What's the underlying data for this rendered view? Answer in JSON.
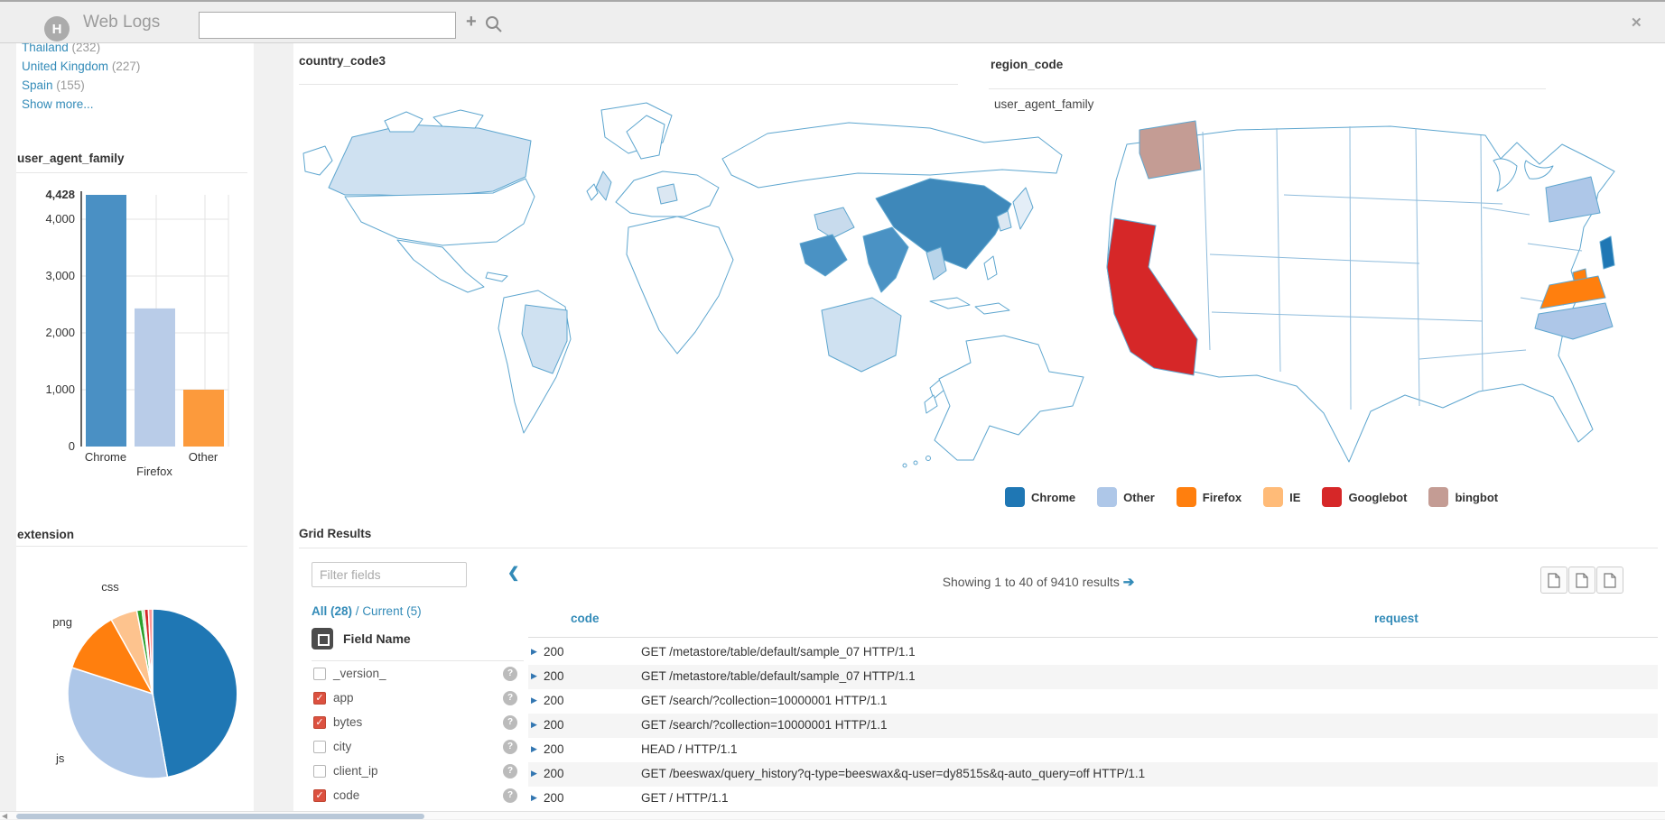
{
  "topbar": {
    "title": "Web Logs",
    "search_value": "",
    "logo_letter": "H"
  },
  "icons": {
    "add": "+",
    "close": "✕",
    "collapse": "❮",
    "next": "➔",
    "row_expand": "▶",
    "help": "?",
    "check": "✓",
    "scroll_left": "◀"
  },
  "sidebar": {
    "country_facet": {
      "items": [
        {
          "label": "Thailand",
          "count": "(232)"
        },
        {
          "label": "United Kingdom",
          "count": "(227)"
        },
        {
          "label": "Spain",
          "count": "(155)"
        }
      ],
      "show_more": "Show more..."
    }
  },
  "grid": {
    "title": "Grid Results",
    "filter_placeholder": "Filter fields",
    "links": {
      "all": "All (28)",
      "separator": "/",
      "current": "Current (5)"
    },
    "field_header": "Field Name",
    "fields": [
      {
        "name": "_version_",
        "checked": false
      },
      {
        "name": "app",
        "checked": true
      },
      {
        "name": "bytes",
        "checked": true
      },
      {
        "name": "city",
        "checked": false
      },
      {
        "name": "client_ip",
        "checked": false
      },
      {
        "name": "code",
        "checked": true
      }
    ],
    "showing_text": "Showing 1 to 40 of 9410 results",
    "columns": [
      "code",
      "request"
    ],
    "rows": [
      {
        "code": "200",
        "request": "GET /metastore/table/default/sample_07 HTTP/1.1"
      },
      {
        "code": "200",
        "request": "GET /metastore/table/default/sample_07 HTTP/1.1"
      },
      {
        "code": "200",
        "request": "GET /search/?collection=10000001 HTTP/1.1"
      },
      {
        "code": "200",
        "request": "GET /search/?collection=10000001 HTTP/1.1"
      },
      {
        "code": "200",
        "request": "HEAD / HTTP/1.1"
      },
      {
        "code": "200",
        "request": "GET /beeswax/query_history?q-type=beeswax&q-user=dy8515s&q-auto_query=off HTTP/1.1"
      },
      {
        "code": "200",
        "request": "GET / HTTP/1.1"
      }
    ]
  },
  "chart_data": [
    {
      "type": "bar",
      "title": "user_agent_family",
      "categories": [
        "Chrome",
        "Firefox",
        "Other"
      ],
      "values": [
        4428,
        2430,
        1000
      ],
      "colors": [
        "#4a90c4",
        "#b9cce8",
        "#fc9a3c"
      ],
      "ylim": [
        0,
        4428
      ],
      "yticks": [
        {
          "label": "4,428",
          "value": 4428,
          "bold": true,
          "grid": false
        },
        {
          "label": "4,000",
          "value": 4000,
          "bold": false,
          "grid": true
        },
        {
          "label": "3,000",
          "value": 3000,
          "bold": false,
          "grid": true
        },
        {
          "label": "2,000",
          "value": 2000,
          "bold": false,
          "grid": true
        },
        {
          "label": "1,000",
          "value": 1000,
          "bold": false,
          "grid": true
        },
        {
          "label": "0",
          "value": 0,
          "bold": false,
          "grid": false
        }
      ],
      "grid": true,
      "legend_position": "none"
    },
    {
      "type": "pie",
      "title": "extension",
      "slices": [
        {
          "label": "",
          "value": 47.2,
          "color": "#1f77b4"
        },
        {
          "label": "js",
          "value": 32.8,
          "color": "#aec7e8"
        },
        {
          "label": "png",
          "value": 11.9,
          "color": "#ff7f0e"
        },
        {
          "label": "css",
          "value": 5.1,
          "color": "#fdc38e"
        },
        {
          "label": "",
          "value": 1.0,
          "color": "#2ca02c"
        },
        {
          "label": "",
          "value": 0.4,
          "color": "#98df8a"
        },
        {
          "label": "",
          "value": 0.8,
          "color": "#d62728"
        },
        {
          "label": "",
          "value": 0.8,
          "color": "#ff9896"
        }
      ]
    },
    {
      "type": "heatmap",
      "subtype": "choropleth-world",
      "title": "country_code3",
      "regions": [
        {
          "key": "canada",
          "name": "Canada",
          "color": "#cfe1f1"
        },
        {
          "key": "brazil",
          "name": "Brazil",
          "color": "#cfe1f1"
        },
        {
          "key": "uk",
          "name": "United Kingdom",
          "color": "#cfe1f1"
        },
        {
          "key": "germany",
          "name": "Germany",
          "color": "#dbe7f2"
        },
        {
          "key": "iran",
          "name": "Iran",
          "color": "#c8dbed"
        },
        {
          "key": "saudi",
          "name": "Saudi Arabia",
          "color": "#4a92c4"
        },
        {
          "key": "india",
          "name": "India",
          "color": "#4a92c4"
        },
        {
          "key": "china",
          "name": "China",
          "color": "#3e88ba"
        },
        {
          "key": "thailand",
          "name": "Thailand",
          "color": "#b8d4ea"
        },
        {
          "key": "korea",
          "name": "South Korea",
          "color": "#dbe7f2"
        },
        {
          "key": "japan",
          "name": "Japan",
          "color": "#e4eef7"
        },
        {
          "key": "australia",
          "name": "Australia",
          "color": "#cfe1f1"
        }
      ]
    },
    {
      "type": "heatmap",
      "subtype": "choropleth-us",
      "title": "region_code",
      "dimension": "user_agent_family",
      "legend": [
        {
          "label": "Chrome",
          "color": "#1f77b4"
        },
        {
          "label": "Other",
          "color": "#aec7e8"
        },
        {
          "label": "Firefox",
          "color": "#ff7f0e"
        },
        {
          "label": "IE",
          "color": "#ffbb78"
        },
        {
          "label": "Googlebot",
          "color": "#d62728"
        },
        {
          "label": "bingbot",
          "color": "#c49c94"
        }
      ],
      "regions": [
        {
          "key": "wa",
          "name": "Washington",
          "color": "#c49c94"
        },
        {
          "key": "ca",
          "name": "California",
          "color": "#d62728"
        },
        {
          "key": "ny",
          "name": "New York",
          "color": "#aec7e8"
        },
        {
          "key": "nj",
          "name": "New Jersey",
          "color": "#1f77b4"
        },
        {
          "key": "md",
          "name": "Maryland",
          "color": "#ff7f0e"
        },
        {
          "key": "va",
          "name": "Virginia",
          "color": "#ff7f0e"
        },
        {
          "key": "nc",
          "name": "North Carolina",
          "color": "#aec7e8"
        }
      ]
    }
  ]
}
